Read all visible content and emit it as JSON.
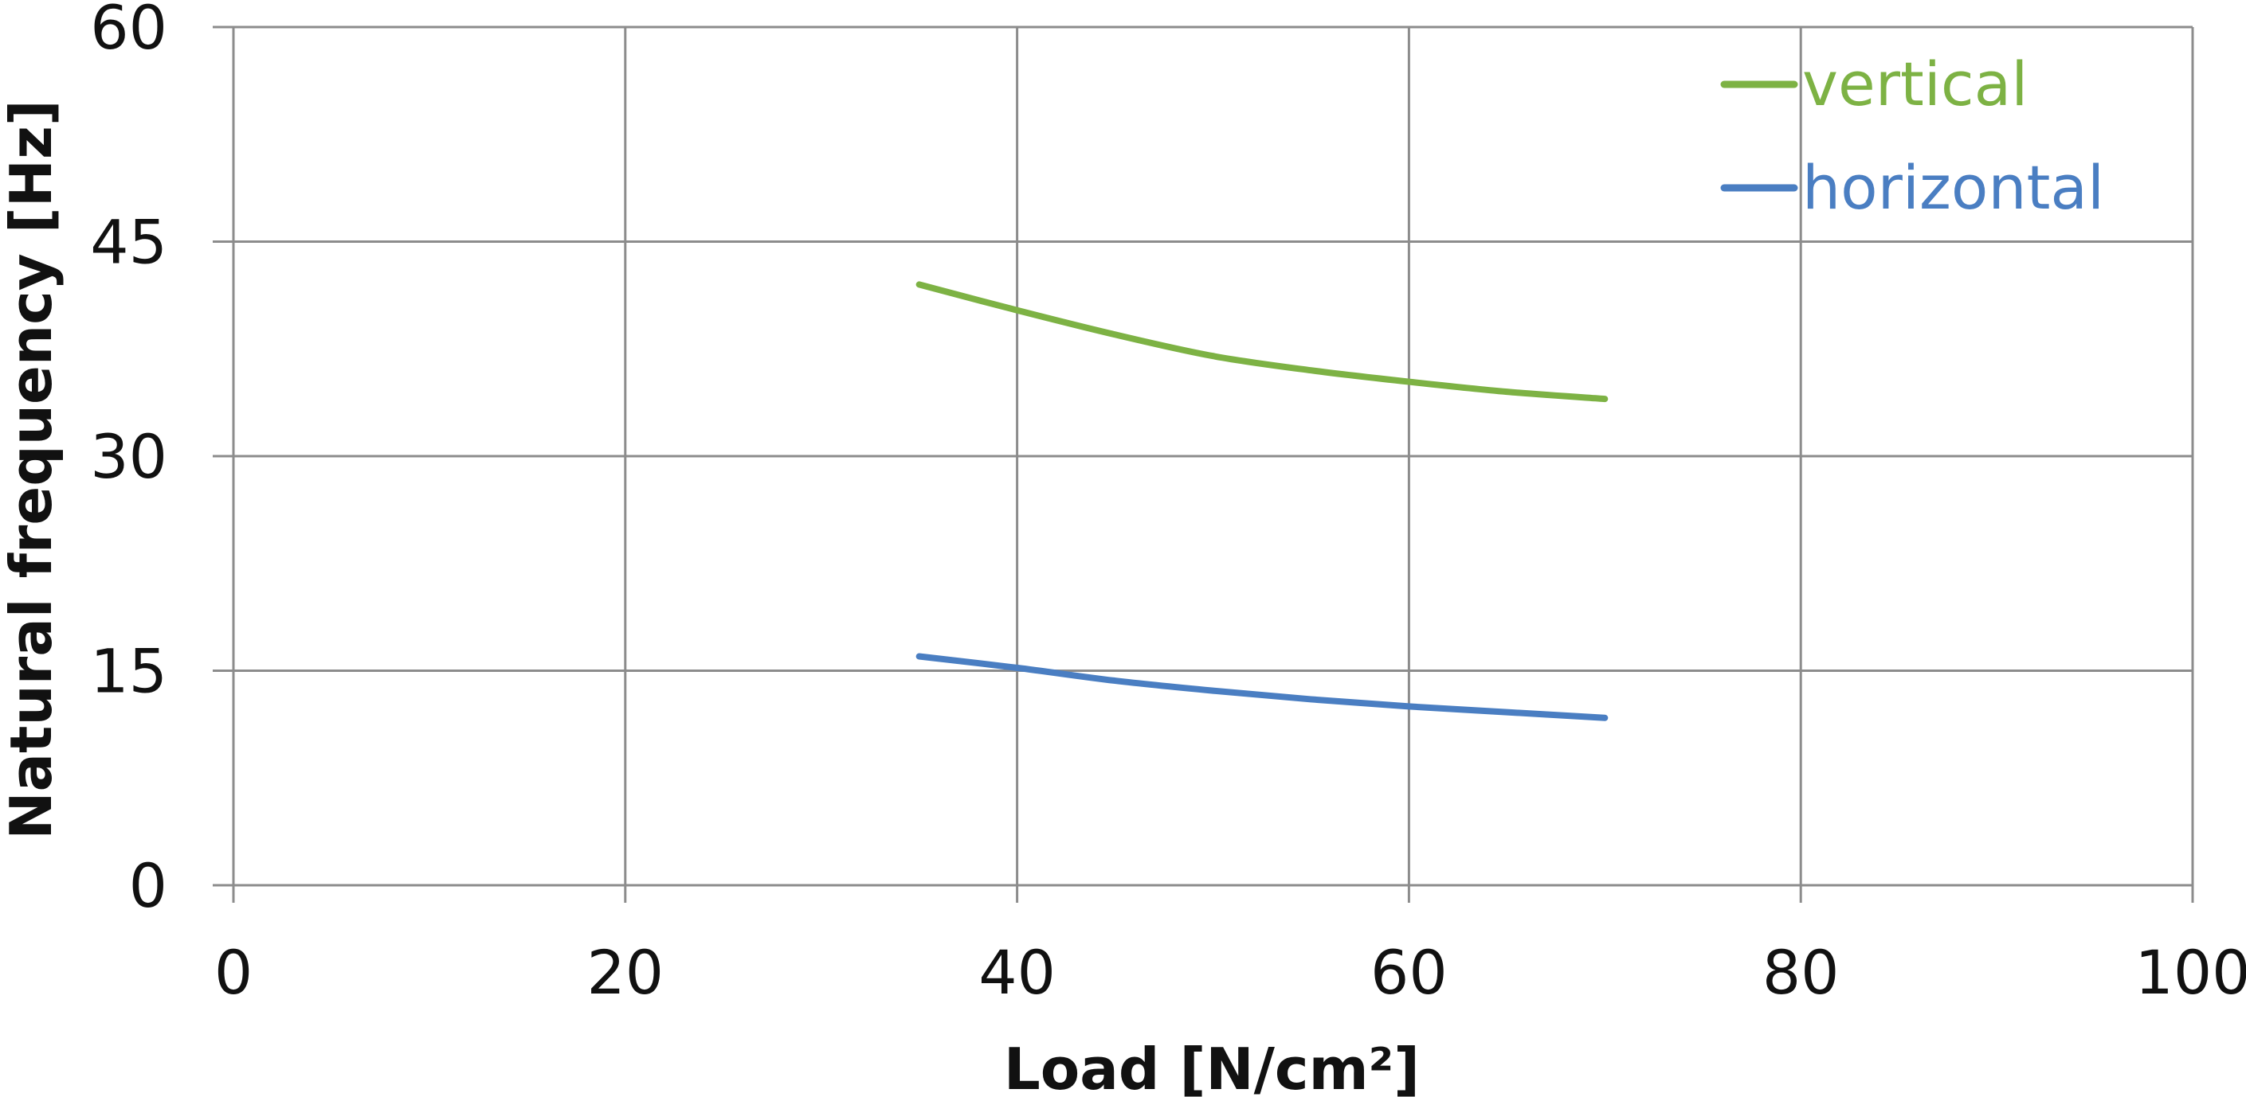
{
  "chart_data": {
    "type": "line",
    "title": "",
    "xlabel": "Load [N/cm²]",
    "ylabel": "Natural frequency [Hz]",
    "xlim": [
      0,
      100
    ],
    "ylim": [
      0,
      60
    ],
    "x_ticks": [
      0,
      20,
      40,
      60,
      80,
      100
    ],
    "y_ticks": [
      0,
      15,
      30,
      45,
      60
    ],
    "grid": true,
    "legend_position": "top-right",
    "series": [
      {
        "name": "vertical",
        "color": "#7db244",
        "x": [
          35,
          40,
          45,
          50,
          55,
          60,
          65,
          70
        ],
        "y": [
          42.0,
          40.2,
          38.5,
          37.0,
          36.0,
          35.2,
          34.5,
          34.0
        ]
      },
      {
        "name": "horizontal",
        "color": "#4a7ec2",
        "x": [
          35,
          40,
          45,
          50,
          55,
          60,
          65,
          70
        ],
        "y": [
          16.0,
          15.2,
          14.3,
          13.6,
          13.0,
          12.5,
          12.1,
          11.7
        ]
      }
    ]
  }
}
